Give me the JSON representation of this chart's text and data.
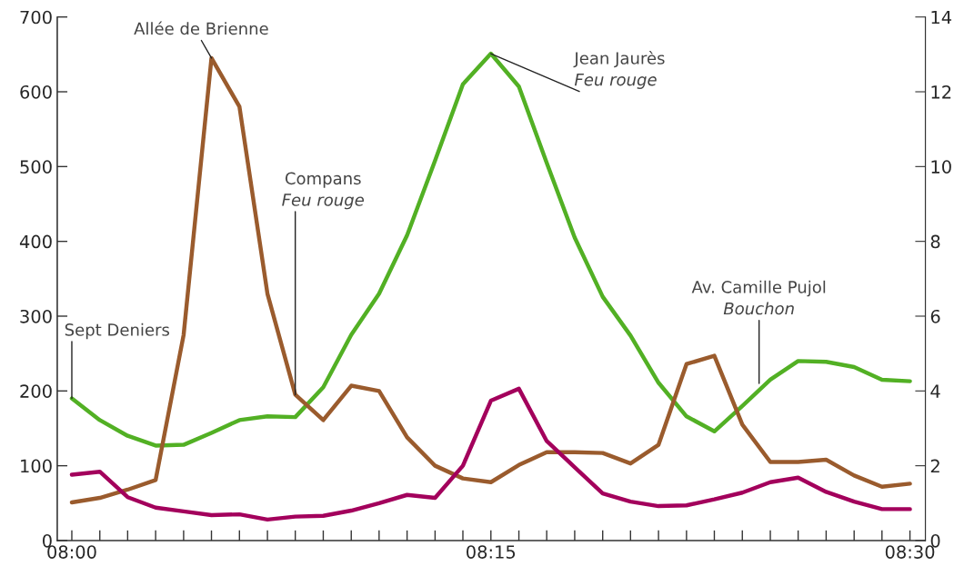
{
  "chart_data": {
    "type": "line",
    "x": [
      8,
      8.0167,
      8.0333,
      8.05,
      8.0667,
      8.0833,
      8.1,
      8.1167,
      8.1333,
      8.15,
      8.1667,
      8.1833,
      8.2,
      8.2167,
      8.2333,
      8.25,
      8.2667,
      8.2833,
      8.3,
      8.3167,
      8.3333,
      8.35,
      8.3667,
      8.3833,
      8.4,
      8.4167,
      8.4333,
      8.45,
      8.4667,
      8.4833,
      8.5
    ],
    "series": [
      {
        "color": "#52b024",
        "values": [
          190,
          161,
          140,
          127,
          128,
          144,
          161,
          166,
          165,
          205,
          275,
          330,
          408,
          508,
          610,
          651,
          607,
          505,
          405,
          326,
          274,
          211,
          166,
          146,
          180,
          215,
          240,
          239,
          232,
          215,
          213
        ]
      },
      {
        "color": "#9a5b2d",
        "values": [
          51,
          57,
          68,
          81,
          275,
          645,
          580,
          330,
          195,
          161,
          207,
          200,
          138,
          100,
          83,
          78,
          101,
          118,
          118,
          117,
          103,
          128,
          236,
          247,
          155,
          105,
          105,
          108,
          87,
          72,
          76
        ]
      },
      {
        "color": "#a3005c",
        "values": [
          88,
          92,
          58,
          44,
          39,
          34,
          35,
          28,
          32,
          33,
          40,
          50,
          61,
          57,
          100,
          187,
          203,
          133,
          98,
          63,
          52,
          46,
          47,
          55,
          64,
          78,
          84,
          65,
          52,
          42,
          42
        ]
      }
    ],
    "xlim": [
      7.9913,
      8.5092
    ],
    "xticks": [
      {
        "value": 8,
        "label": "08:00"
      },
      {
        "value": 8.0167,
        "label": null
      },
      {
        "value": 8.0333,
        "label": null
      },
      {
        "value": 8.05,
        "label": null
      },
      {
        "value": 8.0667,
        "label": null
      },
      {
        "value": 8.0833,
        "label": null
      },
      {
        "value": 8.1,
        "label": null
      },
      {
        "value": 8.1167,
        "label": null
      },
      {
        "value": 8.1333,
        "label": null
      },
      {
        "value": 8.15,
        "label": null
      },
      {
        "value": 8.1667,
        "label": null
      },
      {
        "value": 8.1833,
        "label": null
      },
      {
        "value": 8.2,
        "label": null
      },
      {
        "value": 8.2167,
        "label": null
      },
      {
        "value": 8.2333,
        "label": null
      },
      {
        "value": 8.25,
        "label": "08:15"
      },
      {
        "value": 8.2667,
        "label": null
      },
      {
        "value": 8.2833,
        "label": null
      },
      {
        "value": 8.3,
        "label": null
      },
      {
        "value": 8.3167,
        "label": null
      },
      {
        "value": 8.3333,
        "label": null
      },
      {
        "value": 8.35,
        "label": null
      },
      {
        "value": 8.3667,
        "label": null
      },
      {
        "value": 8.3833,
        "label": null
      },
      {
        "value": 8.4,
        "label": null
      },
      {
        "value": 8.4167,
        "label": null
      },
      {
        "value": 8.4333,
        "label": null
      },
      {
        "value": 8.45,
        "label": null
      },
      {
        "value": 8.4667,
        "label": null
      },
      {
        "value": 8.4833,
        "label": null
      },
      {
        "value": 8.5,
        "label": "08:30"
      }
    ],
    "ylim": [
      0,
      700
    ],
    "yticks": [
      0,
      100,
      200,
      300,
      400,
      500,
      600,
      700
    ],
    "y2lim": [
      0,
      14
    ],
    "y2ticks": [
      0,
      2,
      4,
      6,
      8,
      10,
      12,
      14
    ],
    "grid": false,
    "marker": "none",
    "line_style": "solid",
    "annotations": [
      {
        "text": "Sept Deniers",
        "x": 8,
        "y": 190
      },
      {
        "text": "Allée de Brienne",
        "x": 8.0833,
        "y": 645
      },
      {
        "text": "Compans\nFeu rouge",
        "x": 8.1333,
        "y": 195
      },
      {
        "text": "Jean Jaurès\nFeu rouge",
        "x": 8.25,
        "y": 651
      },
      {
        "text": "Av. Camille Pujol\nBouchon",
        "x": 8.41,
        "y": 210
      }
    ]
  }
}
